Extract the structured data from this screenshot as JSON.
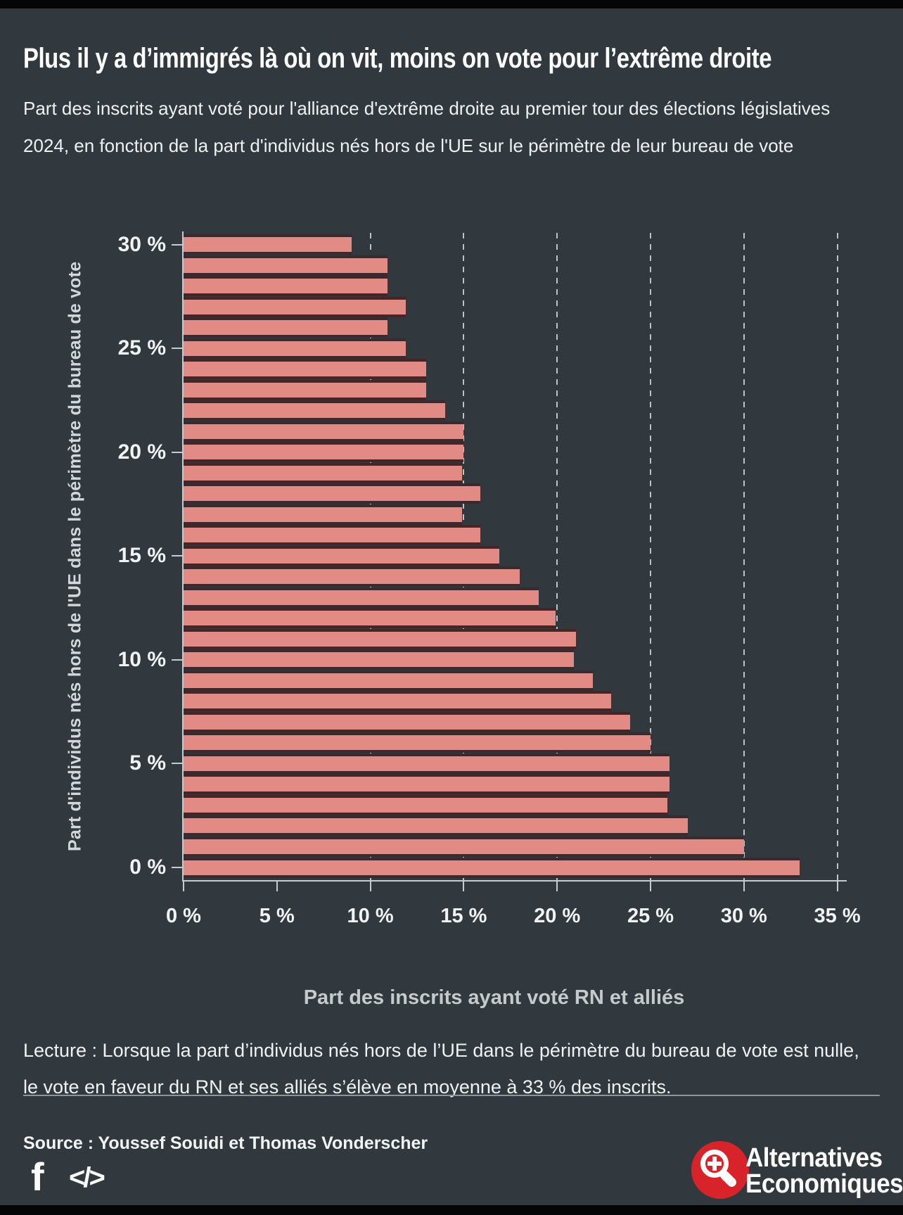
{
  "page": {
    "title": "Plus il y a d’immigrés là où on vit, moins on vote pour l’extrême droite",
    "subtitle": "Part des inscrits ayant voté pour l'alliance d'extrême droite au premier tour des élections législatives 2024, en fonction de la part d'individus nés hors de l'UE sur le périmètre de leur bureau de vote",
    "lecture_note": "Lecture : Lorsque la part d’individus nés hors de l’UE dans le périmètre du bureau de vote est nulle, le vote en faveur du RN et ses alliés s’élève en moyenne à 33 % des inscrits.",
    "source": "Source : Youssef Souidi et Thomas Vonderscher"
  },
  "footer": {
    "facebook_icon": "f",
    "embed_icon": "</>",
    "logo_line1": "Alternatives",
    "logo_line2": "Economiques"
  },
  "colors": {
    "background": "#31393F",
    "bar_fill": "#E28B85",
    "bar_border": "#3F282B",
    "gridline": "#D7DBDC",
    "axis": "#C7CBCD",
    "logo_red": "#D8232A",
    "text_primary": "#F2F3F3",
    "text_secondary": "#C6CACB"
  },
  "chart_data": {
    "type": "bar",
    "orientation": "horizontal",
    "xlabel": "Part des inscrits ayant voté RN et alliés",
    "ylabel": "Part d'individus nés hors de l'UE dans le périmètre du bureau de vote",
    "xlim": [
      0,
      35.5
    ],
    "ylim": [
      0,
      30
    ],
    "x_tick_values": [
      0,
      5,
      10,
      15,
      20,
      25,
      30,
      35
    ],
    "x_tick_labels": [
      "0 %",
      "5 %",
      "10 %",
      "15 %",
      "20 %",
      "25 %",
      "30 %",
      "35 %"
    ],
    "y_tick_values": [
      30,
      25,
      20,
      15,
      10,
      5,
      0
    ],
    "y_tick_labels": [
      "30 %",
      "25 %",
      "20 %",
      "15 %",
      "10 %",
      "5 %",
      "0 %"
    ],
    "gridlines_at": [
      10,
      15,
      20,
      25,
      30,
      35
    ],
    "legend": "none",
    "points": [
      {
        "y": 30,
        "x": 9.0
      },
      {
        "y": 29,
        "x": 10.9
      },
      {
        "y": 28,
        "x": 10.9
      },
      {
        "y": 27,
        "x": 11.9
      },
      {
        "y": 26,
        "x": 10.9
      },
      {
        "y": 25,
        "x": 11.9
      },
      {
        "y": 24,
        "x": 13.0
      },
      {
        "y": 23,
        "x": 13.0
      },
      {
        "y": 22,
        "x": 14.0
      },
      {
        "y": 21,
        "x": 15.0
      },
      {
        "y": 20,
        "x": 15.0
      },
      {
        "y": 19,
        "x": 14.9
      },
      {
        "y": 18,
        "x": 15.9
      },
      {
        "y": 17,
        "x": 14.9
      },
      {
        "y": 16,
        "x": 15.9
      },
      {
        "y": 15,
        "x": 16.9
      },
      {
        "y": 14,
        "x": 18.0
      },
      {
        "y": 13,
        "x": 19.0
      },
      {
        "y": 12,
        "x": 19.9
      },
      {
        "y": 11,
        "x": 21.0
      },
      {
        "y": 10,
        "x": 20.9
      },
      {
        "y": 9,
        "x": 21.9
      },
      {
        "y": 8,
        "x": 22.9
      },
      {
        "y": 7,
        "x": 23.9
      },
      {
        "y": 6,
        "x": 25.0
      },
      {
        "y": 5,
        "x": 26.0
      },
      {
        "y": 4,
        "x": 26.0
      },
      {
        "y": 3,
        "x": 25.9
      },
      {
        "y": 2,
        "x": 27.0
      },
      {
        "y": 1,
        "x": 30.0
      },
      {
        "y": 0,
        "x": 33.0
      }
    ]
  }
}
